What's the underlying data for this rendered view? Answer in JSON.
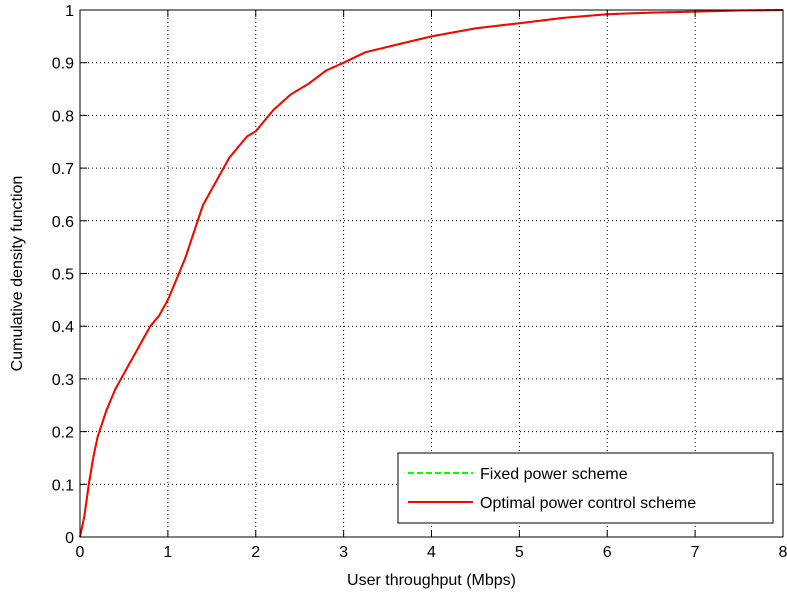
{
  "chart_data": {
    "type": "line",
    "title": "",
    "xlabel": "User throughput (Mbps)",
    "ylabel": "Cumulative density function",
    "xlim": [
      0,
      8
    ],
    "ylim": [
      0,
      1
    ],
    "xticks": [
      0,
      1,
      2,
      3,
      4,
      5,
      6,
      7,
      8
    ],
    "yticks": [
      0,
      0.1,
      0.2,
      0.3,
      0.4,
      0.5,
      0.6,
      0.7,
      0.8,
      0.9,
      1
    ],
    "xtick_labels": [
      "0",
      "1",
      "2",
      "3",
      "4",
      "5",
      "6",
      "7",
      "8"
    ],
    "ytick_labels": [
      "0",
      "0.1",
      "0.2",
      "0.3",
      "0.4",
      "0.5",
      "0.6",
      "0.7",
      "0.8",
      "0.9",
      "1"
    ],
    "grid": true,
    "legend_position": "bottom-right",
    "series": [
      {
        "name": "Fixed power scheme",
        "color": "#00ff00",
        "line_style": "dashed",
        "x": [
          0,
          0.05,
          0.1,
          0.15,
          0.2,
          0.3,
          0.4,
          0.5,
          0.6,
          0.7,
          0.8,
          0.9,
          1.0,
          1.1,
          1.2,
          1.3,
          1.4,
          1.5,
          1.6,
          1.7,
          1.8,
          1.9,
          2.0,
          2.2,
          2.4,
          2.6,
          2.8,
          3.0,
          3.25,
          3.5,
          3.75,
          4.0,
          4.5,
          5.0,
          5.5,
          6.0,
          6.5,
          7.0,
          7.5,
          8.0
        ],
        "y": [
          0,
          0.04,
          0.1,
          0.15,
          0.19,
          0.24,
          0.28,
          0.31,
          0.34,
          0.37,
          0.4,
          0.42,
          0.45,
          0.49,
          0.53,
          0.58,
          0.63,
          0.66,
          0.69,
          0.72,
          0.74,
          0.76,
          0.77,
          0.81,
          0.84,
          0.86,
          0.885,
          0.9,
          0.92,
          0.93,
          0.94,
          0.95,
          0.965,
          0.975,
          0.985,
          0.992,
          0.995,
          0.997,
          0.999,
          1.0
        ]
      },
      {
        "name": "Optimal power control scheme",
        "color": "#ff0000",
        "line_style": "solid",
        "x": [
          0,
          0.05,
          0.1,
          0.15,
          0.2,
          0.3,
          0.4,
          0.5,
          0.6,
          0.7,
          0.8,
          0.9,
          1.0,
          1.1,
          1.2,
          1.3,
          1.4,
          1.5,
          1.6,
          1.7,
          1.8,
          1.9,
          2.0,
          2.2,
          2.4,
          2.6,
          2.8,
          3.0,
          3.25,
          3.5,
          3.75,
          4.0,
          4.5,
          5.0,
          5.5,
          6.0,
          6.5,
          7.0,
          7.5,
          8.0
        ],
        "y": [
          0,
          0.04,
          0.1,
          0.15,
          0.19,
          0.24,
          0.28,
          0.31,
          0.34,
          0.37,
          0.4,
          0.42,
          0.45,
          0.49,
          0.53,
          0.58,
          0.63,
          0.66,
          0.69,
          0.72,
          0.74,
          0.76,
          0.77,
          0.81,
          0.84,
          0.86,
          0.885,
          0.9,
          0.92,
          0.93,
          0.94,
          0.95,
          0.965,
          0.975,
          0.985,
          0.992,
          0.995,
          0.997,
          0.999,
          1.0
        ]
      }
    ]
  }
}
